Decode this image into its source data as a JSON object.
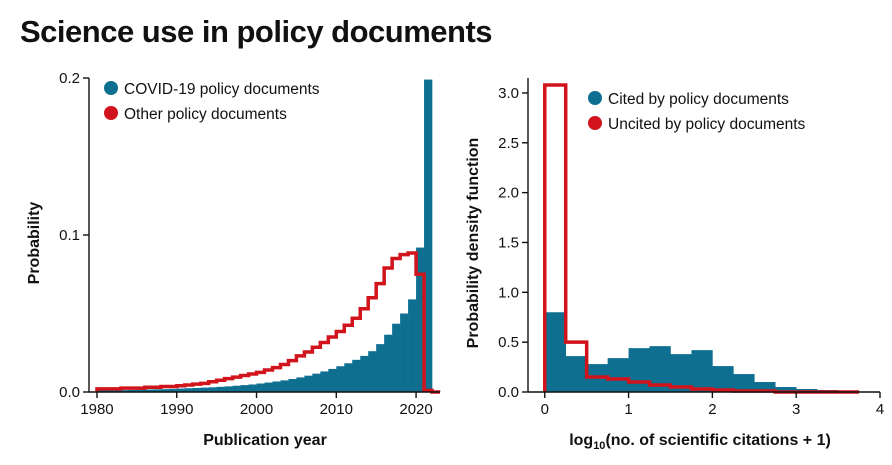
{
  "title": "Science use in policy documents",
  "colors": {
    "blue": "#0e6f91",
    "red": "#d1141b",
    "axis": "#111111"
  },
  "chart_data": [
    {
      "type": "histogram",
      "xlabel": "Publication year",
      "ylabel": "Probability",
      "xlim": [
        1979,
        2023
      ],
      "ylim": [
        0,
        0.2
      ],
      "xticks": [
        1980,
        1990,
        2000,
        2010,
        2020
      ],
      "yticks": [
        0.0,
        0.1,
        0.2
      ],
      "ytick_labels": [
        "0.0",
        "0.1",
        "0.2"
      ],
      "bin_start": 1980,
      "bin_width": 1,
      "legend": [
        "COVID-19 policy documents",
        "Other policy documents"
      ],
      "series": [
        {
          "name": "COVID-19 policy documents",
          "style": "filled",
          "color": "#0e6f91",
          "values": [
            0.001,
            0.001,
            0.0012,
            0.0012,
            0.0013,
            0.0015,
            0.0016,
            0.0017,
            0.0018,
            0.002,
            0.0022,
            0.0024,
            0.0026,
            0.0028,
            0.003,
            0.0033,
            0.0036,
            0.004,
            0.0044,
            0.0048,
            0.0054,
            0.006,
            0.0067,
            0.0074,
            0.0083,
            0.0093,
            0.0104,
            0.0117,
            0.0131,
            0.0147,
            0.0164,
            0.0183,
            0.0205,
            0.023,
            0.026,
            0.0305,
            0.0365,
            0.0435,
            0.05,
            0.059,
            0.092,
            0.199,
            0.001
          ]
        },
        {
          "name": "Other policy documents",
          "style": "step",
          "color": "#d1141b",
          "values": [
            0.002,
            0.002,
            0.002,
            0.0025,
            0.0025,
            0.0025,
            0.003,
            0.003,
            0.0035,
            0.0035,
            0.004,
            0.0045,
            0.005,
            0.0055,
            0.0065,
            0.0075,
            0.0085,
            0.0095,
            0.0105,
            0.0115,
            0.0125,
            0.014,
            0.0155,
            0.0175,
            0.02,
            0.023,
            0.0255,
            0.0285,
            0.0315,
            0.035,
            0.0385,
            0.0425,
            0.047,
            0.053,
            0.06,
            0.069,
            0.079,
            0.085,
            0.0875,
            0.0885,
            0.075,
            0.001,
            0.0
          ]
        }
      ]
    },
    {
      "type": "histogram",
      "xlabel": "log10(no. of scientific citations + 1)",
      "xlabel_parts": {
        "pre": "log",
        "sub": "10",
        "post": "(no. of scientific citations + 1)"
      },
      "ylabel": "Probability density function",
      "xlim": [
        -0.2,
        4.0
      ],
      "ylim": [
        0,
        3.15
      ],
      "xticks": [
        0,
        1,
        2,
        3,
        4
      ],
      "yticks": [
        0.0,
        0.5,
        1.0,
        1.5,
        2.0,
        2.5,
        3.0
      ],
      "ytick_labels": [
        "0.0",
        "0.5",
        "1.0",
        "1.5",
        "2.0",
        "2.5",
        "3.0"
      ],
      "bin_start": 0,
      "bin_width": 0.25,
      "legend": [
        "Cited by policy documents",
        "Uncited by policy documents"
      ],
      "series": [
        {
          "name": "Cited by policy documents",
          "style": "filled",
          "color": "#0e6f91",
          "values": [
            0.8,
            0.36,
            0.28,
            0.34,
            0.44,
            0.46,
            0.38,
            0.42,
            0.26,
            0.18,
            0.1,
            0.05,
            0.03,
            0.02,
            0.01
          ]
        },
        {
          "name": "Uncited by policy documents",
          "style": "step",
          "color": "#d1141b",
          "values": [
            3.08,
            0.5,
            0.15,
            0.13,
            0.1,
            0.07,
            0.05,
            0.03,
            0.02,
            0.01,
            0.01,
            0.0,
            0.0,
            0.0,
            0.0
          ]
        }
      ]
    }
  ]
}
